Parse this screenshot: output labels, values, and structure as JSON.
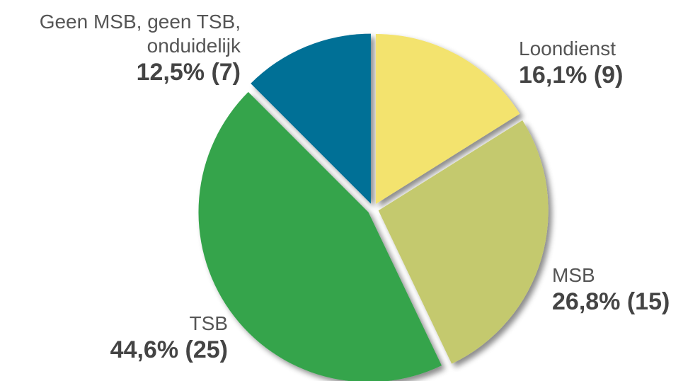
{
  "chart_data": {
    "type": "pie",
    "categories": [
      "Loondienst",
      "MSB",
      "TSB",
      "Geen MSB, geen TSB, onduidelijk"
    ],
    "values": [
      16.1,
      26.8,
      44.6,
      12.5
    ],
    "value_labels": [
      "16,1% (9)",
      "26,8% (15)",
      "44,6% (25)",
      "12,5% (7)"
    ],
    "colors": [
      "#f3e36e",
      "#c4c96e",
      "#34a44b",
      "#006f96"
    ]
  }
}
